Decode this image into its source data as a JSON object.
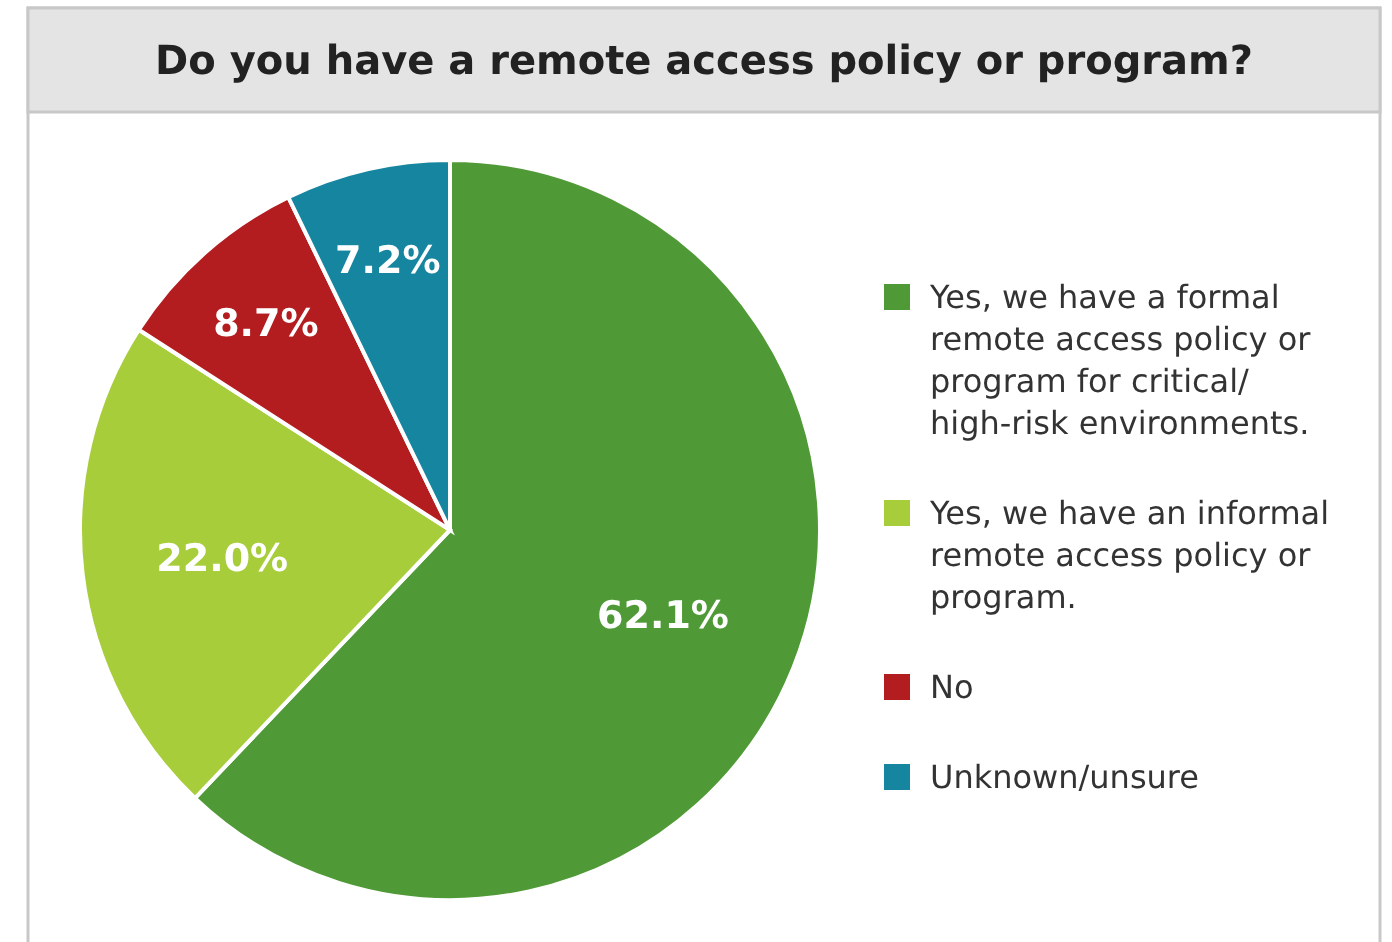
{
  "chart_data": {
    "type": "pie",
    "title": "Do you have a remote access policy or program?",
    "categories": [
      "Yes, we have a formal remote access policy or program for critical/ high-risk environments.",
      "Yes, we have an informal remote access policy or program.",
      "No",
      "Unknown/unsure"
    ],
    "values": [
      62.1,
      22.0,
      8.7,
      7.2
    ],
    "value_labels": [
      "62.1%",
      "22.0%",
      "8.7%",
      "7.2%"
    ],
    "colors": [
      "#4f9a36",
      "#a8cd3b",
      "#b31d20",
      "#16859f"
    ],
    "legend": "right"
  }
}
